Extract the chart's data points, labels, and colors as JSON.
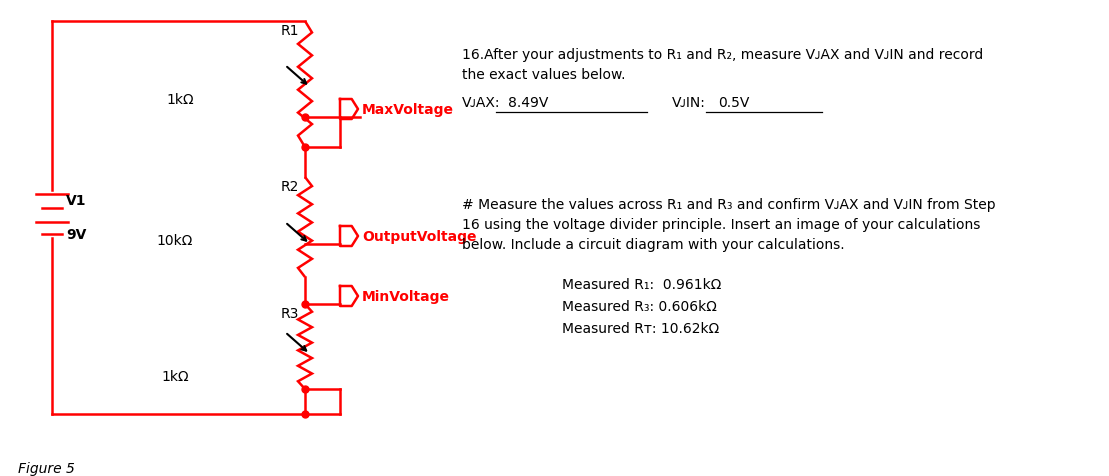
{
  "fig_width": 11.09,
  "fig_height": 4.77,
  "bg_color": "#ffffff",
  "circuit_color": "#ff0000",
  "text_color": "#000000",
  "red_text_color": "#ff0000",
  "figure_label": "Figure 5",
  "v1_label": "V1",
  "v1_value": "9V",
  "r1_label": "R1",
  "r1_value": "1kΩ",
  "r2_label": "R2",
  "r2_value": "10kΩ",
  "r3_label": "R3",
  "r3_value": "1kΩ",
  "max_voltage_label": "MaxVoltage",
  "output_voltage_label": "OutputVoltage",
  "min_voltage_label": "MinVoltage",
  "text_16_line1": "16.After your adjustments to R₁ and R₂, measure VᴊAX and VᴊIN and record",
  "text_16_line2": "the exact values below.",
  "text_vmax_label": "VᴊAX:",
  "text_vmax_value": "8.49V",
  "text_vmin_label": "VᴊIN:",
  "text_vmin_value": "0.5V",
  "text_measure1": "# Measure the values across R₁ and R₃ and confirm VᴊAX and VᴊIN from Step",
  "text_measure2": "16 using the voltage divider principle. Insert an image of your calculations",
  "text_measure3": "below. Include a circuit diagram with your calculations.",
  "text_r1_meas": "Measured R₁:  0.961kΩ",
  "text_r3_meas": "Measured R₃: 0.606kΩ",
  "text_rt_meas": "Measured Rᴛ: 10.62kΩ"
}
